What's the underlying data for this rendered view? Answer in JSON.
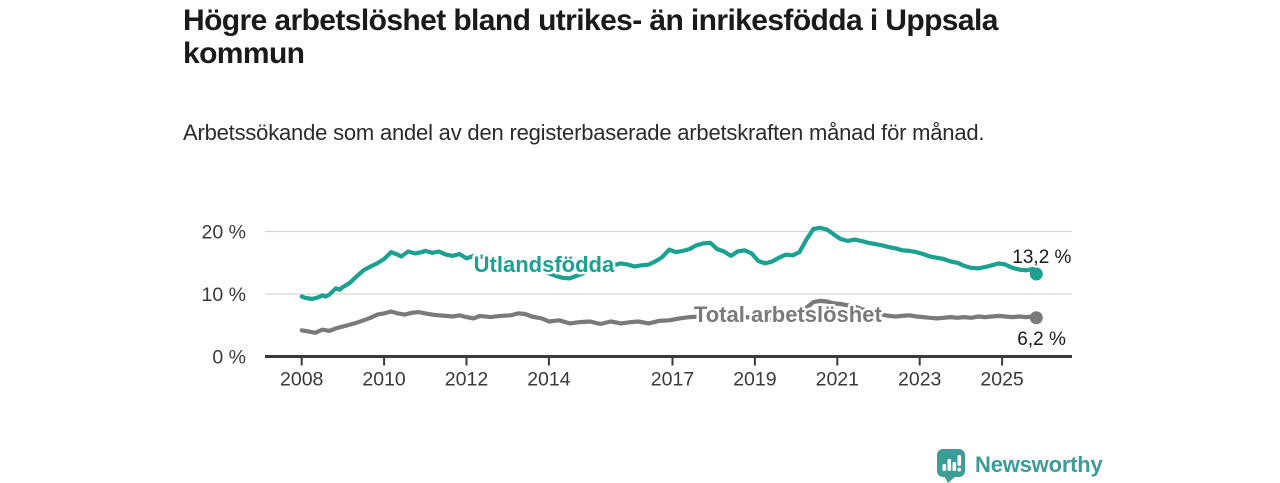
{
  "header": {
    "title": "Högre arbetslöshet bland utrikes- än inrikesfödda i Uppsala kommun",
    "subtitle": "Arbetssökande som andel av den registerbaserade arbetskraften månad för månad."
  },
  "footer": {
    "brand": "Newsworthy",
    "logo_icon": "bar-chart-speech-bubble-icon",
    "brand_color": "#3E9B96"
  },
  "colors": {
    "accent_teal": "#1CA08F",
    "series_gray": "#7A7A7A",
    "axis": "#3A3A3A",
    "grid": "#D6D6D6",
    "text_dark": "#1A1A1A",
    "tick_text": "#3A3A3A"
  },
  "chart_data": {
    "type": "line",
    "title": "Högre arbetslöshet bland utrikes- än inrikesfödda i Uppsala kommun",
    "subtitle": "Arbetssökande som andel av den registerbaserade arbetskraften månad för månad.",
    "unit": "%",
    "grid": "horizontal",
    "legend_position": "inline-labels",
    "xlim": [
      2008,
      2025.92
    ],
    "ylim": [
      0,
      22
    ],
    "x_ticks": [
      2008,
      2010,
      2012,
      2014,
      2017,
      2019,
      2021,
      2023,
      2025
    ],
    "y_ticks": [
      {
        "value": 0,
        "label": "0 %"
      },
      {
        "value": 10,
        "label": "10 %"
      },
      {
        "value": 20,
        "label": "20 %"
      }
    ],
    "series": [
      {
        "name": "Utlandsfödda",
        "color": "#1CA08F",
        "end_value": 13.2,
        "end_label": "13,2 %",
        "end_label_offset": [
          -24,
          -11
        ],
        "label_at": [
          2013.88,
          13.5
        ],
        "points": [
          [
            2008.0,
            9.6
          ],
          [
            2008.08,
            9.4
          ],
          [
            2008.25,
            9.2
          ],
          [
            2008.42,
            9.5
          ],
          [
            2008.5,
            9.8
          ],
          [
            2008.58,
            9.6
          ],
          [
            2008.67,
            9.9
          ],
          [
            2008.83,
            10.9
          ],
          [
            2008.92,
            10.7
          ],
          [
            2009.0,
            11.1
          ],
          [
            2009.17,
            11.8
          ],
          [
            2009.33,
            12.8
          ],
          [
            2009.5,
            13.8
          ],
          [
            2009.67,
            14.4
          ],
          [
            2009.83,
            14.9
          ],
          [
            2010.0,
            15.6
          ],
          [
            2010.08,
            16.1
          ],
          [
            2010.17,
            16.7
          ],
          [
            2010.33,
            16.3
          ],
          [
            2010.42,
            16.0
          ],
          [
            2010.58,
            16.8
          ],
          [
            2010.75,
            16.5
          ],
          [
            2010.92,
            16.7
          ],
          [
            2011.0,
            16.9
          ],
          [
            2011.17,
            16.6
          ],
          [
            2011.33,
            16.8
          ],
          [
            2011.5,
            16.3
          ],
          [
            2011.67,
            16.1
          ],
          [
            2011.83,
            16.4
          ],
          [
            2012.0,
            15.7
          ],
          [
            2012.17,
            16.1
          ],
          [
            2012.33,
            15.9
          ],
          [
            2012.5,
            16.1
          ],
          [
            2012.67,
            15.7
          ],
          [
            2012.83,
            15.5
          ],
          [
            2013.0,
            15.3
          ],
          [
            2013.25,
            14.9
          ],
          [
            2013.5,
            14.5
          ],
          [
            2013.75,
            13.9
          ],
          [
            2014.0,
            13.3
          ],
          [
            2014.17,
            12.9
          ],
          [
            2014.33,
            12.6
          ],
          [
            2014.5,
            12.5
          ],
          [
            2014.67,
            12.9
          ],
          [
            2014.83,
            13.3
          ],
          [
            2015.0,
            13.7
          ],
          [
            2015.25,
            14.1
          ],
          [
            2015.5,
            14.5
          ],
          [
            2015.75,
            14.9
          ],
          [
            2015.92,
            14.7
          ],
          [
            2016.08,
            14.4
          ],
          [
            2016.25,
            14.6
          ],
          [
            2016.42,
            14.7
          ],
          [
            2016.58,
            15.2
          ],
          [
            2016.75,
            15.9
          ],
          [
            2016.92,
            17.1
          ],
          [
            2017.08,
            16.7
          ],
          [
            2017.25,
            16.9
          ],
          [
            2017.42,
            17.2
          ],
          [
            2017.58,
            17.8
          ],
          [
            2017.75,
            18.1
          ],
          [
            2017.92,
            18.2
          ],
          [
            2018.08,
            17.2
          ],
          [
            2018.25,
            16.8
          ],
          [
            2018.42,
            16.1
          ],
          [
            2018.58,
            16.8
          ],
          [
            2018.75,
            17.0
          ],
          [
            2018.92,
            16.5
          ],
          [
            2019.08,
            15.3
          ],
          [
            2019.25,
            14.9
          ],
          [
            2019.42,
            15.2
          ],
          [
            2019.58,
            15.8
          ],
          [
            2019.75,
            16.3
          ],
          [
            2019.92,
            16.2
          ],
          [
            2020.08,
            16.7
          ],
          [
            2020.25,
            18.7
          ],
          [
            2020.42,
            20.4
          ],
          [
            2020.58,
            20.6
          ],
          [
            2020.75,
            20.3
          ],
          [
            2020.92,
            19.5
          ],
          [
            2021.08,
            18.8
          ],
          [
            2021.25,
            18.5
          ],
          [
            2021.42,
            18.7
          ],
          [
            2021.58,
            18.5
          ],
          [
            2021.75,
            18.2
          ],
          [
            2021.92,
            18.0
          ],
          [
            2022.08,
            17.8
          ],
          [
            2022.25,
            17.5
          ],
          [
            2022.42,
            17.3
          ],
          [
            2022.58,
            17.0
          ],
          [
            2022.75,
            16.9
          ],
          [
            2022.92,
            16.7
          ],
          [
            2023.08,
            16.4
          ],
          [
            2023.25,
            16.0
          ],
          [
            2023.42,
            15.8
          ],
          [
            2023.58,
            15.6
          ],
          [
            2023.75,
            15.2
          ],
          [
            2023.92,
            15.0
          ],
          [
            2024.08,
            14.5
          ],
          [
            2024.25,
            14.2
          ],
          [
            2024.42,
            14.1
          ],
          [
            2024.58,
            14.3
          ],
          [
            2024.75,
            14.6
          ],
          [
            2024.92,
            14.9
          ],
          [
            2025.08,
            14.7
          ],
          [
            2025.25,
            14.2
          ],
          [
            2025.42,
            13.9
          ],
          [
            2025.58,
            13.8
          ],
          [
            2025.75,
            14.0
          ],
          [
            2025.83,
            13.2
          ]
        ]
      },
      {
        "name": "Total arbetslöshet",
        "color": "#7A7A7A",
        "end_value": 6.2,
        "end_label": "6,2 %",
        "end_label_offset": [
          -19,
          27
        ],
        "label_at": [
          2019.8,
          5.5
        ],
        "points": [
          [
            2008.0,
            4.2
          ],
          [
            2008.17,
            4.0
          ],
          [
            2008.33,
            3.8
          ],
          [
            2008.5,
            4.3
          ],
          [
            2008.67,
            4.1
          ],
          [
            2008.83,
            4.5
          ],
          [
            2009.0,
            4.8
          ],
          [
            2009.17,
            5.1
          ],
          [
            2009.33,
            5.4
          ],
          [
            2009.5,
            5.8
          ],
          [
            2009.67,
            6.2
          ],
          [
            2009.83,
            6.7
          ],
          [
            2010.0,
            6.9
          ],
          [
            2010.17,
            7.2
          ],
          [
            2010.33,
            6.9
          ],
          [
            2010.5,
            6.7
          ],
          [
            2010.67,
            7.0
          ],
          [
            2010.83,
            7.1
          ],
          [
            2011.0,
            6.9
          ],
          [
            2011.17,
            6.7
          ],
          [
            2011.33,
            6.6
          ],
          [
            2011.5,
            6.5
          ],
          [
            2011.67,
            6.4
          ],
          [
            2011.83,
            6.6
          ],
          [
            2012.0,
            6.3
          ],
          [
            2012.17,
            6.1
          ],
          [
            2012.33,
            6.5
          ],
          [
            2012.58,
            6.3
          ],
          [
            2012.83,
            6.5
          ],
          [
            2013.08,
            6.6
          ],
          [
            2013.25,
            6.9
          ],
          [
            2013.42,
            6.8
          ],
          [
            2013.58,
            6.4
          ],
          [
            2013.83,
            6.1
          ],
          [
            2014.0,
            5.6
          ],
          [
            2014.25,
            5.8
          ],
          [
            2014.5,
            5.3
          ],
          [
            2014.75,
            5.5
          ],
          [
            2015.0,
            5.6
          ],
          [
            2015.25,
            5.2
          ],
          [
            2015.5,
            5.6
          ],
          [
            2015.75,
            5.3
          ],
          [
            2016.0,
            5.5
          ],
          [
            2016.17,
            5.6
          ],
          [
            2016.42,
            5.3
          ],
          [
            2016.67,
            5.7
          ],
          [
            2016.92,
            5.8
          ],
          [
            2017.17,
            6.1
          ],
          [
            2017.42,
            6.3
          ],
          [
            2017.67,
            6.4
          ],
          [
            2017.92,
            6.5
          ],
          [
            2018.17,
            6.3
          ],
          [
            2018.42,
            6.2
          ],
          [
            2018.67,
            6.4
          ],
          [
            2018.92,
            6.2
          ],
          [
            2019.17,
            5.9
          ],
          [
            2019.42,
            6.0
          ],
          [
            2019.67,
            6.2
          ],
          [
            2019.92,
            6.4
          ],
          [
            2020.08,
            6.8
          ],
          [
            2020.25,
            7.8
          ],
          [
            2020.42,
            8.7
          ],
          [
            2020.58,
            8.9
          ],
          [
            2020.75,
            8.8
          ],
          [
            2020.92,
            8.5
          ],
          [
            2021.08,
            8.4
          ],
          [
            2021.25,
            8.2
          ],
          [
            2021.42,
            8.0
          ],
          [
            2021.58,
            7.6
          ],
          [
            2021.75,
            7.3
          ],
          [
            2021.92,
            7.0
          ],
          [
            2022.08,
            6.7
          ],
          [
            2022.25,
            6.5
          ],
          [
            2022.42,
            6.4
          ],
          [
            2022.58,
            6.5
          ],
          [
            2022.75,
            6.6
          ],
          [
            2022.92,
            6.4
          ],
          [
            2023.08,
            6.3
          ],
          [
            2023.25,
            6.2
          ],
          [
            2023.42,
            6.1
          ],
          [
            2023.58,
            6.2
          ],
          [
            2023.75,
            6.3
          ],
          [
            2023.92,
            6.2
          ],
          [
            2024.08,
            6.3
          ],
          [
            2024.25,
            6.2
          ],
          [
            2024.42,
            6.4
          ],
          [
            2024.58,
            6.3
          ],
          [
            2024.75,
            6.4
          ],
          [
            2024.92,
            6.5
          ],
          [
            2025.08,
            6.4
          ],
          [
            2025.25,
            6.3
          ],
          [
            2025.42,
            6.4
          ],
          [
            2025.58,
            6.3
          ],
          [
            2025.75,
            6.4
          ],
          [
            2025.83,
            6.2
          ]
        ]
      }
    ]
  }
}
